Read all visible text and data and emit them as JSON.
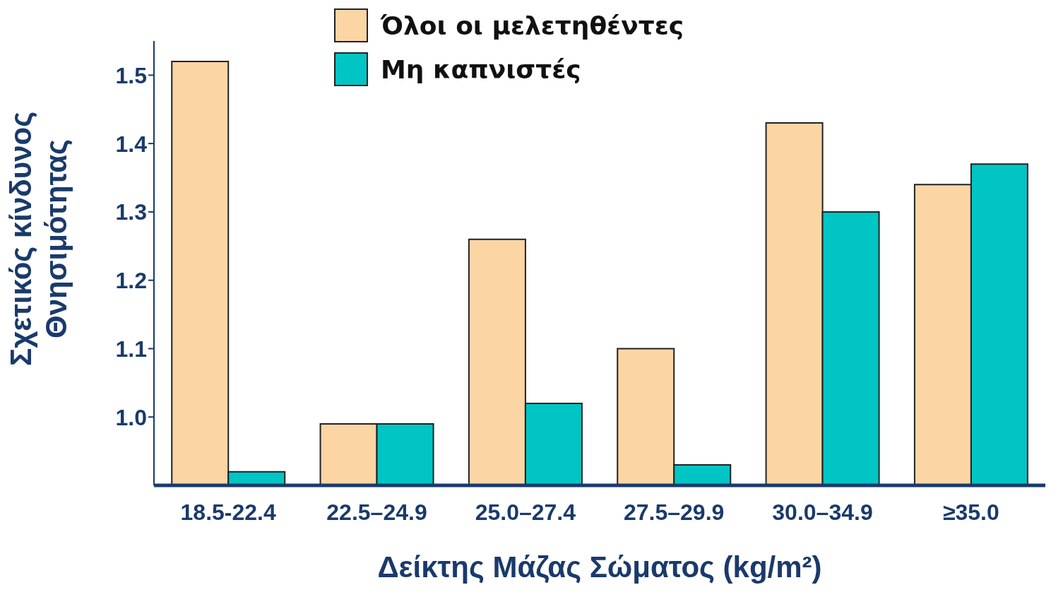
{
  "chart_data": {
    "type": "bar",
    "xlabel": "Δείκτης Μάζας Σώματος (kg/m²)",
    "ylabel": "Σχετικός κίνδυνος\nΘνησιμότητας",
    "categories": [
      "18.5-22.4",
      "22.5–24.9",
      "25.0–27.4",
      "27.5–29.9",
      "30.0–34.9",
      "≥35.0"
    ],
    "series": [
      {
        "name": "Όλοι οι μελετηθέντες",
        "color": "#fcd5a5",
        "values": [
          1.52,
          0.99,
          1.26,
          1.1,
          1.43,
          1.34
        ]
      },
      {
        "name": "Μη καπνιστές",
        "color": "#00c5c5",
        "values": [
          0.92,
          0.99,
          1.02,
          0.93,
          1.3,
          1.37
        ]
      }
    ],
    "ylim": [
      0.9,
      1.55
    ],
    "yticks": [
      {
        "value": 1,
        "label": "1.0"
      },
      1.1,
      1.2,
      1.3,
      1.4,
      1.5
    ],
    "grid": false,
    "legend": "top"
  }
}
